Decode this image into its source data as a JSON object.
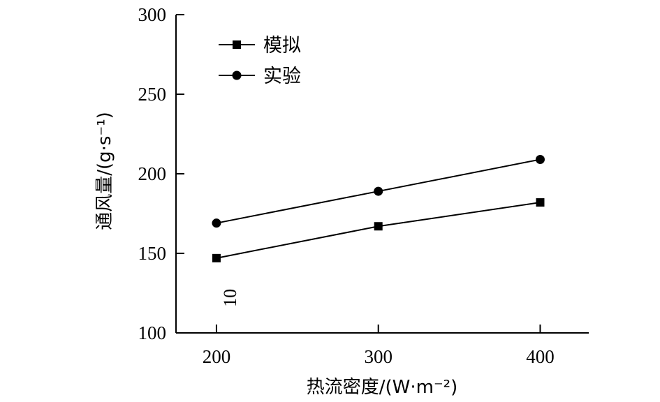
{
  "chart_data": {
    "type": "line",
    "x": [
      200,
      300,
      400
    ],
    "xlabel": "热流密度/(W·m⁻²)",
    "ylabel": "通风量/(g·s⁻¹)",
    "xlim": [
      175,
      430
    ],
    "ylim": [
      100,
      300
    ],
    "xticks": [
      200,
      300,
      400
    ],
    "yticks": [
      100,
      150,
      200,
      250,
      300
    ],
    "grid": false,
    "legend_position": "top-left",
    "series": [
      {
        "name": "模拟",
        "marker": "square",
        "values": [
          147,
          167,
          182
        ]
      },
      {
        "name": "实验",
        "marker": "circle",
        "values": [
          169,
          189,
          209
        ]
      }
    ],
    "annotations": [
      {
        "text": "10",
        "x": 212,
        "y": 122,
        "rotation": -90
      }
    ]
  }
}
